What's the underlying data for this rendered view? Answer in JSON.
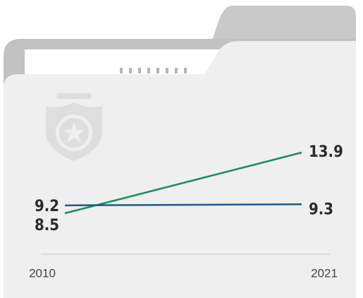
{
  "chart_data": {
    "type": "line",
    "categories": [
      "2010",
      "2021"
    ],
    "series": [
      {
        "name": null,
        "color": "#1b8a63",
        "values": [
          8.5,
          13.9
        ]
      },
      {
        "name": null,
        "color": "#1f5a87",
        "values": [
          9.2,
          9.3
        ]
      }
    ]
  }
}
